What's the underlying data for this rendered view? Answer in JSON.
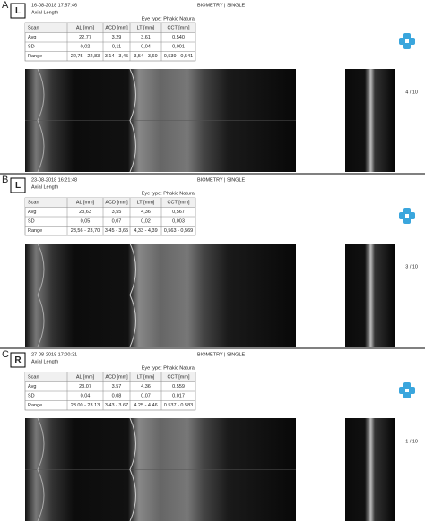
{
  "panels": [
    {
      "label": "A",
      "eye": "L",
      "datetime": "16-08-2018 17:57:46",
      "subtitle": "Axial Length",
      "header": "BIOMETRY | SINGLE",
      "eye_type": "Eye type: Phakic Natural",
      "table": {
        "columns": [
          "Scan",
          "AL [mm]",
          "ACD [mm]",
          "LT [mm]",
          "CCT [mm]"
        ],
        "rows": [
          [
            "Avg",
            "22,77",
            "3,29",
            "3,61",
            "0,540"
          ],
          [
            "SD",
            "0,02",
            "0,11",
            "0,04",
            "0,001"
          ],
          [
            "Range",
            "22,75 - 22,83",
            "3,14 - 3,45",
            "3,54 - 3,69",
            "0,539 - 0,541"
          ]
        ]
      },
      "page_indicator": "4 / 10"
    },
    {
      "label": "B",
      "eye": "L",
      "datetime": "23-08-2018 16:21:48",
      "subtitle": "Axial Length",
      "header": "BIOMETRY | SINGLE",
      "eye_type": "Eye type: Phakic Natural",
      "table": {
        "columns": [
          "Scan",
          "AL [mm]",
          "ACD [mm]",
          "LT [mm]",
          "CCT [mm]"
        ],
        "rows": [
          [
            "Avg",
            "23,63",
            "3,55",
            "4,36",
            "0,567"
          ],
          [
            "SD",
            "0,05",
            "0,07",
            "0,02",
            "0,003"
          ],
          [
            "Range",
            "23,56 - 23,70",
            "3,45 - 3,65",
            "4,33 - 4,39",
            "0,563 - 0,569"
          ]
        ]
      },
      "page_indicator": "3 / 10"
    },
    {
      "label": "C",
      "eye": "R",
      "datetime": "27-08-2018 17:00:31",
      "subtitle": "Axial Length",
      "header": "BIOMETRY | SINGLE",
      "eye_type": "Eye type: Phakic Natural",
      "table": {
        "columns": [
          "Scan",
          "AL [mm]",
          "ACD [mm]",
          "LT [mm]",
          "CCT [mm]"
        ],
        "rows": [
          [
            "Avg",
            "23.07",
            "3.57",
            "4.36",
            "0.559"
          ],
          [
            "SD",
            "0.04",
            "0.08",
            "0.07",
            "0.017"
          ],
          [
            "Range",
            "23.00 - 23.13",
            "3.43 - 3.67",
            "4.25 - 4.46",
            "0.537 - 0.583"
          ]
        ]
      },
      "page_indicator": "1 / 10"
    }
  ]
}
